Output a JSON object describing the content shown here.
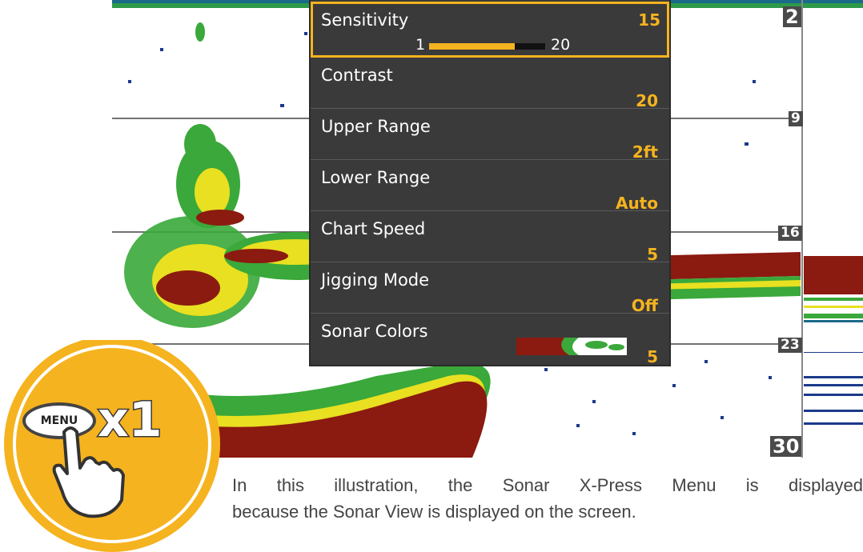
{
  "menu": {
    "items": [
      {
        "label": "Sensitivity",
        "value": "15"
      },
      {
        "label": "Contrast",
        "value": "20"
      },
      {
        "label": "Upper Range",
        "value": "2ft"
      },
      {
        "label": "Lower Range",
        "value": "Auto"
      },
      {
        "label": "Chart Speed",
        "value": "5"
      },
      {
        "label": "Jigging Mode",
        "value": "Off"
      },
      {
        "label": "Sonar Colors",
        "value": "5"
      }
    ],
    "sensitivity_slider": {
      "min": "1",
      "max": "20",
      "level_fraction": 0.74
    }
  },
  "depth_scale": [
    "2",
    "9",
    "16",
    "23",
    "30"
  ],
  "badge": {
    "button_label": "MENU",
    "count": "x1",
    "hand_icon": "pointing-hand-icon"
  },
  "caption": {
    "line1": "In this illustration, the Sonar X-Press Menu is displayed",
    "line2": "because the Sonar View is displayed on the screen."
  },
  "colors": {
    "accent": "#f5b31f",
    "menu_bg": "#3a3a3a",
    "sonar_red": "#8b1a10",
    "sonar_green": "#3aa83a",
    "sonar_yellow": "#e8e020"
  }
}
